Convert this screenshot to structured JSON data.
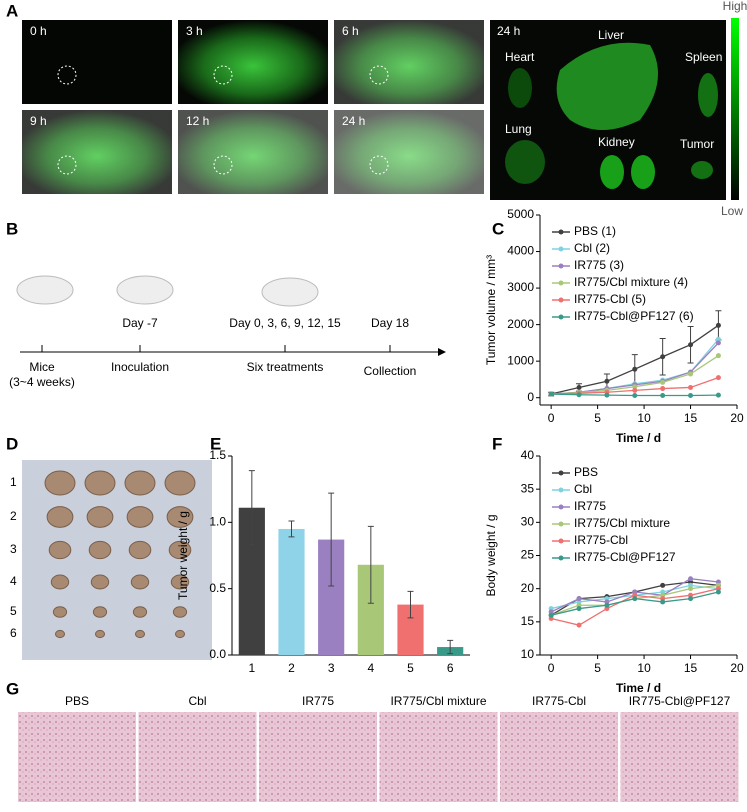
{
  "panel_labels": [
    "A",
    "B",
    "C",
    "D",
    "E",
    "F",
    "G"
  ],
  "panel_a": {
    "time_labels": [
      "0 h",
      "3 h",
      "6 h",
      "9 h",
      "12 h",
      "24 h"
    ],
    "organ_time": "24 h",
    "organs": [
      "Heart",
      "Liver",
      "Spleen",
      "Lung",
      "Kidney",
      "Tumor"
    ],
    "colorbar": {
      "high": "High",
      "low": "Low"
    }
  },
  "panel_b": {
    "days": [
      "Day  -7",
      "Day 0, 3, 6, 9, 12, 15",
      "Day 18"
    ],
    "stages": [
      "Mice",
      "Inoculation",
      "Six treatments",
      "Collection"
    ],
    "mice_note": "(3~4 weeks)"
  },
  "panel_d": {
    "rows": [
      "1",
      "2",
      "3",
      "4",
      "5",
      "6"
    ]
  },
  "panel_g": {
    "labels": [
      "PBS",
      "Cbl",
      "IR775",
      "IR775/Cbl mixture",
      "IR775-Cbl",
      "IR775-Cbl@PF127"
    ]
  },
  "chart_data": [
    {
      "type": "line",
      "xlabel": "Time / d",
      "ylabel": "Tumor volume / mm³",
      "x": [
        0,
        3,
        6,
        9,
        12,
        15,
        18
      ],
      "xlim": [
        -1.2,
        20
      ],
      "xticks": [
        0,
        5,
        10,
        15,
        20
      ],
      "ylim": [
        -200,
        5000
      ],
      "yticks": [
        0,
        1000,
        2000,
        3000,
        4000,
        5000
      ],
      "legend": "upper left",
      "series": [
        {
          "name": "PBS (1)",
          "color": "#404040",
          "values": [
            100,
            280,
            450,
            780,
            1120,
            1450,
            1980
          ],
          "errors": [
            50,
            100,
            200,
            400,
            500,
            500,
            400
          ]
        },
        {
          "name": "Cbl (2)",
          "color": "#7fd3e0",
          "values": [
            100,
            150,
            250,
            380,
            480,
            700,
            1600
          ]
        },
        {
          "name": "IR775 (3)",
          "color": "#9a80c0",
          "values": [
            100,
            150,
            250,
            350,
            450,
            700,
            1500
          ]
        },
        {
          "name": "IR775/Cbl mixture (4)",
          "color": "#a8c878",
          "values": [
            100,
            140,
            200,
            300,
            420,
            650,
            1150
          ]
        },
        {
          "name": "IR775-Cbl (5)",
          "color": "#f07070",
          "values": [
            100,
            120,
            150,
            200,
            250,
            280,
            550
          ]
        },
        {
          "name": "IR775-Cbl@PF127 (6)",
          "color": "#3a9a8a",
          "values": [
            100,
            80,
            70,
            60,
            60,
            60,
            70
          ]
        }
      ]
    },
    {
      "type": "bar",
      "ylabel": "Tumor weight / g",
      "categories": [
        "1",
        "2",
        "3",
        "4",
        "5",
        "6"
      ],
      "values": [
        1.11,
        0.95,
        0.87,
        0.68,
        0.38,
        0.06
      ],
      "errors": [
        0.28,
        0.06,
        0.35,
        0.29,
        0.1,
        0.05
      ],
      "colors": [
        "#404040",
        "#8fd3e8",
        "#9a80c0",
        "#a8c878",
        "#f07070",
        "#3a9a8a"
      ],
      "ylim": [
        0,
        1.5
      ],
      "yticks": [
        {
          "value": 0,
          "label": "0.0"
        },
        {
          "value": 0.5,
          "label": "0.5"
        },
        {
          "value": 1,
          "label": "1.0"
        },
        {
          "value": 1.5,
          "label": "1.5"
        }
      ]
    },
    {
      "type": "line",
      "xlabel": "Time / d",
      "ylabel": "Body weight / g",
      "x": [
        0,
        3,
        6,
        9,
        12,
        15,
        18
      ],
      "xlim": [
        -1.2,
        20
      ],
      "xticks": [
        0,
        5,
        10,
        15,
        20
      ],
      "ylim": [
        10,
        40
      ],
      "yticks": [
        10,
        15,
        20,
        25,
        30,
        35,
        40
      ],
      "legend": "upper left",
      "series": [
        {
          "name": "PBS",
          "color": "#404040",
          "values": [
            16,
            18.5,
            18.8,
            19.5,
            20.5,
            21,
            20.5
          ]
        },
        {
          "name": "Cbl",
          "color": "#7fd3e0",
          "values": [
            17,
            18,
            18.5,
            19,
            19.5,
            20.5,
            20
          ]
        },
        {
          "name": "IR775",
          "color": "#9a80c0",
          "values": [
            16.5,
            18.5,
            18,
            19.5,
            19,
            21.5,
            21
          ]
        },
        {
          "name": "IR775/Cbl mixture",
          "color": "#a8c878",
          "values": [
            16,
            17.5,
            17.5,
            18.5,
            19,
            20,
            20.5
          ]
        },
        {
          "name": "IR775-Cbl",
          "color": "#f07070",
          "values": [
            15.5,
            14.5,
            17,
            19,
            18.5,
            19,
            20
          ]
        },
        {
          "name": "IR775-Cbl@PF127",
          "color": "#3a9a8a",
          "values": [
            16,
            17,
            17.5,
            18.5,
            18,
            18.5,
            19.5
          ]
        }
      ]
    }
  ]
}
